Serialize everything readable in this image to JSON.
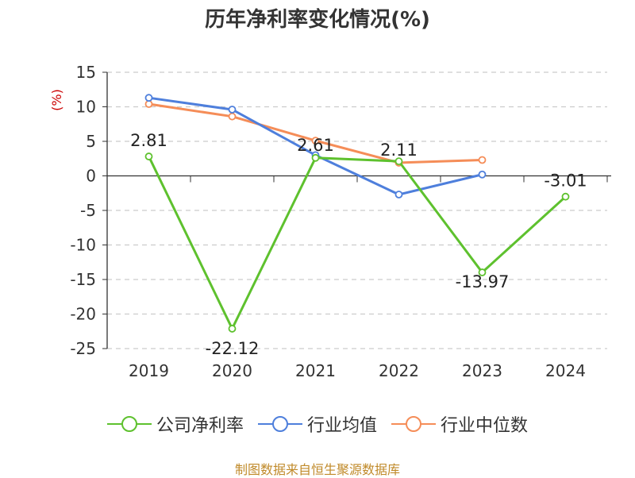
{
  "chart_data": {
    "type": "line",
    "title": "历年净利率变化情况(%)",
    "ylabel": "(%)",
    "xlabel": "",
    "categories": [
      "2019",
      "2020",
      "2021",
      "2022",
      "2023",
      "2024"
    ],
    "ylim": [
      -25,
      15
    ],
    "yticks": [
      15,
      10,
      5,
      0,
      -5,
      -10,
      -15,
      -20,
      -25
    ],
    "grid": true,
    "legend_position": "bottom",
    "series": [
      {
        "name": "公司净利率",
        "color": "#5ec12e",
        "values": [
          2.81,
          -22.12,
          2.61,
          2.11,
          -13.97,
          -3.01
        ],
        "labels": [
          "2.81",
          "-22.12",
          "2.61",
          "2.11",
          "-13.97",
          "-3.01"
        ]
      },
      {
        "name": "行业均值",
        "color": "#4e7fdc",
        "values": [
          11.3,
          9.6,
          3.0,
          -2.7,
          0.2,
          null
        ]
      },
      {
        "name": "行业中位数",
        "color": "#f58d58",
        "values": [
          10.4,
          8.6,
          5.1,
          1.9,
          2.3,
          null
        ]
      }
    ]
  },
  "colors": {
    "ylabel": "#cc0000",
    "footer": "#c08a2a",
    "axis": "#333333",
    "grid": "#cccccc"
  },
  "footer": "制图数据来自恒生聚源数据库"
}
